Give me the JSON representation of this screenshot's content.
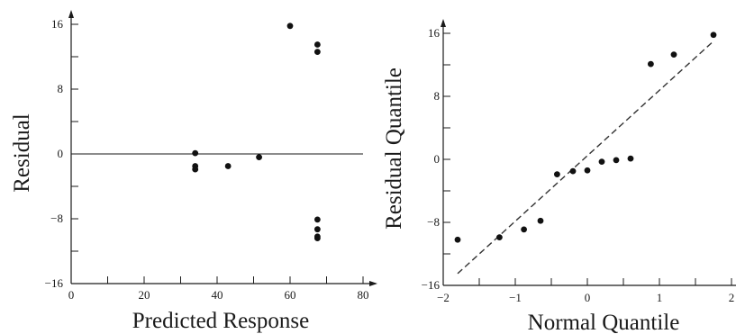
{
  "chart_data": [
    {
      "type": "scatter",
      "title": "",
      "xlabel": "Predicted Response",
      "ylabel": "Residual",
      "xlim": [
        0,
        80
      ],
      "ylim": [
        -16,
        16
      ],
      "x_ticks": [
        0,
        20,
        40,
        60,
        80
      ],
      "y_ticks": [
        -16,
        -8,
        0,
        8,
        16
      ],
      "reference_line": {
        "type": "horizontal",
        "y": 0
      },
      "series": [
        {
          "points": [
            {
              "x": 34,
              "y": 0.1
            },
            {
              "x": 34,
              "y": -1.5
            },
            {
              "x": 34,
              "y": -1.9
            },
            {
              "x": 43,
              "y": -1.5
            },
            {
              "x": 51.5,
              "y": -0.4
            },
            {
              "x": 60,
              "y": 15.8
            },
            {
              "x": 67.5,
              "y": 13.5
            },
            {
              "x": 67.5,
              "y": 12.6
            },
            {
              "x": 67.5,
              "y": -8.1
            },
            {
              "x": 67.5,
              "y": -9.3
            },
            {
              "x": 67.5,
              "y": -10.2
            },
            {
              "x": 67.5,
              "y": -10.4
            }
          ]
        }
      ]
    },
    {
      "type": "scatter",
      "title": "",
      "xlabel": "Normal Quantile",
      "ylabel": "Residual Quantile",
      "xlim": [
        -2,
        2
      ],
      "ylim": [
        -16,
        16
      ],
      "x_ticks": [
        -2,
        -1,
        0,
        1,
        2
      ],
      "y_ticks": [
        -16,
        -8,
        0,
        8,
        16
      ],
      "reference_line": {
        "type": "dashed",
        "from": [
          -1.8,
          -14.5
        ],
        "to": [
          1.75,
          15
        ]
      },
      "series": [
        {
          "points": [
            {
              "x": -1.8,
              "y": -10.2
            },
            {
              "x": -1.22,
              "y": -9.9
            },
            {
              "x": -0.88,
              "y": -8.9
            },
            {
              "x": -0.65,
              "y": -7.8
            },
            {
              "x": -0.42,
              "y": -1.9
            },
            {
              "x": -0.2,
              "y": -1.5
            },
            {
              "x": 0.0,
              "y": -1.4
            },
            {
              "x": 0.2,
              "y": -0.3
            },
            {
              "x": 0.4,
              "y": -0.1
            },
            {
              "x": 0.6,
              "y": 0.1
            },
            {
              "x": 0.88,
              "y": 12.1
            },
            {
              "x": 1.2,
              "y": 13.3
            },
            {
              "x": 1.75,
              "y": 15.8
            }
          ]
        }
      ]
    }
  ]
}
